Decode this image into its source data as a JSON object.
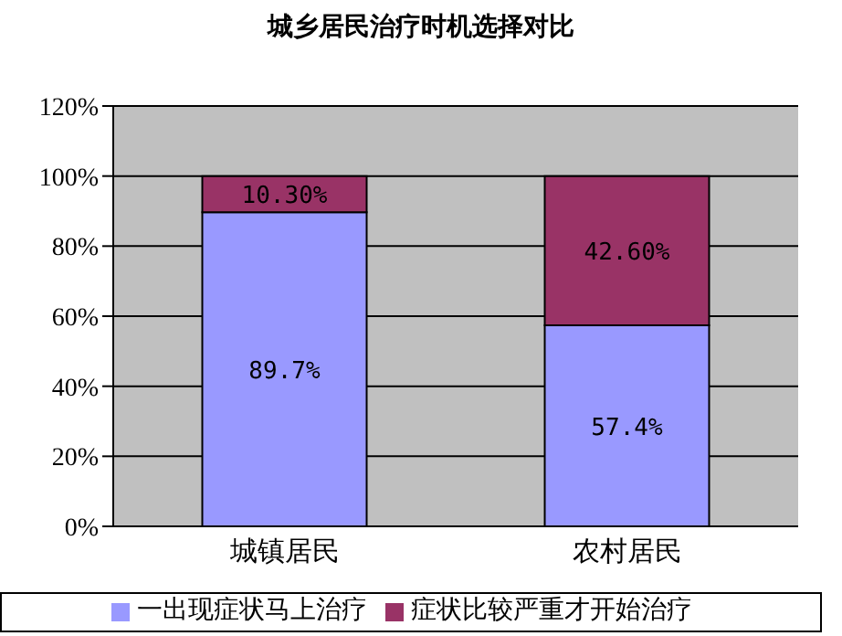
{
  "chart_data": {
    "type": "bar",
    "title": "城乡居民治疗时机选择对比",
    "categories": [
      "城镇居民",
      "农村居民"
    ],
    "stacked": true,
    "series": [
      {
        "name": "一出现症状马上治疗",
        "color": "#9999ff",
        "values": [
          89.7,
          57.4
        ],
        "value_labels": [
          "89.7%",
          "57.4%"
        ]
      },
      {
        "name": "症状比较严重才开始治疗",
        "color": "#993366",
        "values": [
          10.3,
          42.6
        ],
        "value_labels": [
          "10.30%",
          "42.60%"
        ]
      }
    ],
    "ylim": [
      0,
      120
    ],
    "yticks": [
      {
        "value": 0,
        "label": "0%"
      },
      {
        "value": 20,
        "label": "20%"
      },
      {
        "value": 40,
        "label": "40%"
      },
      {
        "value": 60,
        "label": "60%"
      },
      {
        "value": 80,
        "label": "80%"
      },
      {
        "value": 100,
        "label": "100%"
      },
      {
        "value": 120,
        "label": "120%"
      }
    ],
    "grid": "y",
    "legend": "bottom"
  }
}
